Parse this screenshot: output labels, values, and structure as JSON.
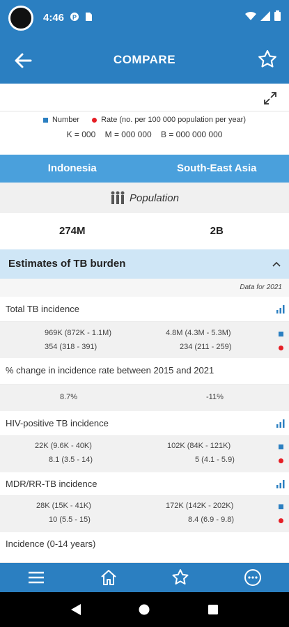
{
  "status": {
    "time": "4:46"
  },
  "header": {
    "title": "COMPARE"
  },
  "legend": {
    "number_label": "Number",
    "rate_label": "Rate (no. per 100 000 population per year)",
    "units": "K = 000    M = 000 000    B = 000 000 000",
    "number_color": "#2b7fc1",
    "rate_color": "#e51e25"
  },
  "countries": {
    "left": "Indonesia",
    "right": "South-East Asia"
  },
  "population": {
    "label": "Population",
    "left": "274M",
    "right": "2B"
  },
  "section": {
    "title": "Estimates of TB burden",
    "data_for": "Data for 2021"
  },
  "rows": {
    "total": {
      "title": "Total TB incidence",
      "left_number": "969K (872K - 1.1M)",
      "left_rate": "354 (318 - 391)",
      "right_number": "4.8M (4.3M - 5.3M)",
      "right_rate": "234 (211 - 259)"
    },
    "change": {
      "title": "% change in incidence rate between 2015 and 2021",
      "left": "8.7%",
      "right": "-11%"
    },
    "hiv": {
      "title": "HIV-positive TB incidence",
      "left_number": "22K (9.6K - 40K)",
      "left_rate": "8.1 (3.5 - 14)",
      "right_number": "102K (84K - 121K)",
      "right_rate": "5 (4.1 - 5.9)"
    },
    "mdr": {
      "title": "MDR/RR-TB incidence",
      "left_number": "28K (15K - 41K)",
      "left_rate": "10 (5.5 - 15)",
      "right_number": "172K (142K - 202K)",
      "right_rate": "8.4 (6.9 - 9.8)"
    },
    "child": {
      "title": "Incidence (0-14 years)"
    }
  },
  "icons": [
    "back-arrow-icon",
    "star-icon",
    "expand-icon",
    "population-icon",
    "chevron-up-icon",
    "bar-chart-icon",
    "menu-icon",
    "home-icon",
    "more-icon"
  ]
}
